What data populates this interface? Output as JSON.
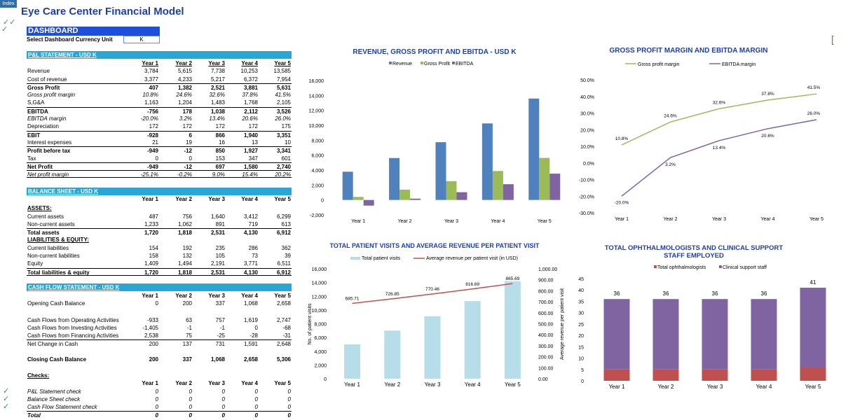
{
  "index_tab": "Index",
  "title": "Eye Care Center Financial Model",
  "dashboard_label": "DASHBOARD",
  "currency_label": "Select Dashboard Currency Unit",
  "currency_value": "K",
  "years": [
    "Year 1",
    "Year 2",
    "Year 3",
    "Year 4",
    "Year 5"
  ],
  "pl": {
    "header": "P&L STATEMENT - USD K",
    "rows": [
      {
        "label": "Revenue",
        "values": [
          "3,784",
          "5,615",
          "7,738",
          "10,253",
          "13,585"
        ],
        "style": ""
      },
      {
        "label": "Cost of revenue",
        "values": [
          "3,377",
          "4,233",
          "5,217",
          "6,372",
          "7,954"
        ],
        "style": ""
      },
      {
        "label": "Gross Profit",
        "values": [
          "407",
          "1,382",
          "2,521",
          "3,881",
          "5,631"
        ],
        "style": "b topline"
      },
      {
        "label": "Gross profit margin",
        "values": [
          "10.8%",
          "24.6%",
          "32.6%",
          "37.8%",
          "41.5%"
        ],
        "style": "i"
      },
      {
        "label": "S,G&A",
        "values": [
          "1,163",
          "1,204",
          "1,483",
          "1,768",
          "2,105"
        ],
        "style": ""
      },
      {
        "label": "EBITDA",
        "values": [
          "-756",
          "178",
          "1,038",
          "2,112",
          "3,526"
        ],
        "style": "b topline"
      },
      {
        "label": "EBITDA margin",
        "values": [
          "-20.0%",
          "3.2%",
          "13.4%",
          "20.6%",
          "26.0%"
        ],
        "style": "i"
      },
      {
        "label": "Depreciation",
        "values": [
          "172",
          "172",
          "172",
          "172",
          "175"
        ],
        "style": ""
      },
      {
        "label": "EBIT",
        "values": [
          "-928",
          "6",
          "866",
          "1,940",
          "3,351"
        ],
        "style": "b topline"
      },
      {
        "label": "Interest expenses",
        "values": [
          "21",
          "19",
          "16",
          "13",
          "10"
        ],
        "style": ""
      },
      {
        "label": "Profit before tax",
        "values": [
          "-949",
          "-12",
          "850",
          "1,927",
          "3,341"
        ],
        "style": "b topline"
      },
      {
        "label": "Tax",
        "values": [
          "0",
          "0",
          "153",
          "347",
          "601"
        ],
        "style": ""
      },
      {
        "label": "Net Profit",
        "values": [
          "-949",
          "-12",
          "697",
          "1,580",
          "2,740"
        ],
        "style": "b topline"
      },
      {
        "label": "Net profit margin",
        "values": [
          "-25.1%",
          "-0.2%",
          "9.0%",
          "15.4%",
          "20.2%"
        ],
        "style": "i topline bottomline"
      }
    ]
  },
  "bs": {
    "header": "BALANCE SHEET - USD K",
    "rows": [
      {
        "label": "ASSETS:",
        "values": [
          "",
          "",
          "",
          "",
          ""
        ],
        "style": "b ul"
      },
      {
        "label": "Current assets",
        "values": [
          "487",
          "756",
          "1,640",
          "3,412",
          "6,299"
        ],
        "style": ""
      },
      {
        "label": "Non-current assets",
        "values": [
          "1,233",
          "1,062",
          "891",
          "719",
          "613"
        ],
        "style": ""
      },
      {
        "label": "Total assets",
        "values": [
          "1,720",
          "1,818",
          "2,531",
          "4,130",
          "6,912"
        ],
        "style": "b topline"
      },
      {
        "label": "LIABILITIES & EQUITY:",
        "values": [
          "",
          "",
          "",
          "",
          ""
        ],
        "style": "b ul"
      },
      {
        "label": "Current liabilities",
        "values": [
          "154",
          "192",
          "235",
          "286",
          "362"
        ],
        "style": ""
      },
      {
        "label": "Non-current liabilities",
        "values": [
          "158",
          "132",
          "105",
          "73",
          "39"
        ],
        "style": ""
      },
      {
        "label": "Equity",
        "values": [
          "1,409",
          "1,494",
          "2,191",
          "3,771",
          "6,511"
        ],
        "style": ""
      },
      {
        "label": "Total liabilities & equity",
        "values": [
          "1,720",
          "1,818",
          "2,531",
          "4,130",
          "6,912"
        ],
        "style": "b topline bottomline"
      }
    ]
  },
  "cf": {
    "header": "CASH FLOW STATEMENT -  USD K",
    "opening": {
      "label": "Opening Cash Balance",
      "values": [
        "0",
        "200",
        "337",
        "1,068",
        "2,658"
      ]
    },
    "rows": [
      {
        "label": "Cash Flows from Operating Activities",
        "values": [
          "-933",
          "63",
          "757",
          "1,619",
          "2,747"
        ],
        "style": ""
      },
      {
        "label": "Cash Flows from Investing Activities",
        "values": [
          "-1,405",
          "-1",
          "-1",
          "0",
          "-68"
        ],
        "style": ""
      },
      {
        "label": "Cash Flows from Financing Activities",
        "values": [
          "2,538",
          "75",
          "-25",
          "-28",
          "-31"
        ],
        "style": ""
      },
      {
        "label": "Net Change in Cash",
        "values": [
          "200",
          "137",
          "731",
          "1,591",
          "2,648"
        ],
        "style": "topline"
      }
    ],
    "closing": {
      "label": "Closing Cash Balance",
      "values": [
        "200",
        "337",
        "1,068",
        "2,658",
        "5,306"
      ]
    }
  },
  "checks": {
    "header": "Checks:",
    "rows": [
      {
        "label": "P&L Statement check",
        "values": [
          "0",
          "0",
          "0",
          "0",
          "0"
        ],
        "style": "i"
      },
      {
        "label": "Balance Sheet check",
        "values": [
          "0",
          "0",
          "0",
          "0",
          "0"
        ],
        "style": "i"
      },
      {
        "label": "Cash Flow Statement check",
        "values": [
          "0",
          "0",
          "0",
          "0",
          "0"
        ],
        "style": "i"
      },
      {
        "label": "Total",
        "values": [
          "0",
          "0",
          "0",
          "0",
          "0"
        ],
        "style": "b i topline"
      }
    ]
  },
  "chart_data": [
    {
      "type": "bar",
      "title": "REVENUE, GROSS PROFIT AND EBITDA - USD K",
      "categories": [
        "Year 1",
        "Year 2",
        "Year 3",
        "Year 4",
        "Year 5"
      ],
      "series": [
        {
          "name": "Revenue",
          "values": [
            3784,
            5615,
            7738,
            10253,
            13585
          ],
          "color": "#4f81bd"
        },
        {
          "name": "Gross Profit",
          "values": [
            407,
            1382,
            2521,
            3881,
            5631
          ],
          "color": "#9bbb59"
        },
        {
          "name": "EBITDA",
          "values": [
            -756,
            178,
            1038,
            2112,
            3526
          ],
          "color": "#8064a2"
        }
      ],
      "ylim": [
        -2000,
        16000
      ],
      "yticks": [
        "-2,000",
        "0",
        "2,000",
        "4,000",
        "6,000",
        "8,000",
        "10,000",
        "12,000",
        "14,000",
        "16,000"
      ],
      "legend": "top"
    },
    {
      "type": "line",
      "title": "GROSS PROFIT MARGIN AND EBITDA MARGIN",
      "categories": [
        "Year 1",
        "Year 2",
        "Year 3",
        "Year 4",
        "Year 5"
      ],
      "series": [
        {
          "name": "Gross profit margin",
          "values": [
            10.8,
            24.6,
            32.6,
            37.8,
            41.5
          ],
          "labels": [
            "10.8%",
            "24.6%",
            "32.6%",
            "37.8%",
            "41.5%"
          ],
          "color": "#9bbb59"
        },
        {
          "name": "EBITDA margin",
          "values": [
            -20.0,
            3.2,
            13.4,
            20.6,
            26.0
          ],
          "labels": [
            "-20.0%",
            "3.2%",
            "13.4%",
            "20.6%",
            "26.0%"
          ],
          "color": "#8064a2"
        }
      ],
      "ylim": [
        -30,
        50
      ],
      "yticks": [
        "-30.0%",
        "-20.0%",
        "-10.0%",
        "0.0%",
        "10.0%",
        "20.0%",
        "30.0%",
        "40.0%",
        "50.0%"
      ],
      "legend": "top"
    },
    {
      "type": "bar",
      "title": "TOTAL PATIENT VISITS AND AVERAGE REVENUE PER PATIENT VISIT",
      "categories": [
        "Year 1",
        "Year 2",
        "Year 3",
        "Year 4",
        "Year 5"
      ],
      "series": [
        {
          "name": "Total patient visits",
          "values": [
            5000,
            7000,
            9100,
            11300,
            14200
          ],
          "color": "#b7dde8"
        },
        {
          "name": "Average revenue per patient visit (in USD)",
          "values": [
            685.71,
            726.85,
            770.46,
            816.69,
            865.69
          ],
          "labels": [
            "685.71",
            "726.85",
            "770.46",
            "816.69",
            "865.69"
          ],
          "color": "#c0504d"
        }
      ],
      "ylim": [
        0,
        16000
      ],
      "yticks": [
        "0",
        "2,000",
        "4,000",
        "6,000",
        "8,000",
        "10,000",
        "12,000",
        "14,000",
        "16,000"
      ],
      "y2lim": [
        0,
        1000
      ],
      "y2ticks": [
        "0.00",
        "100.00",
        "200.00",
        "300.00",
        "400.00",
        "500.00",
        "600.00",
        "700.00",
        "800.00",
        "900.00",
        "1,000.00"
      ],
      "ylabel": "No. of patient visits",
      "y2label": "Average revenue per patient visit",
      "legend": "top"
    },
    {
      "type": "bar",
      "title": "TOTAL OPHTHALMOLOGISTS AND CLINICAL SUPPORT STAFF EMPLOYED",
      "categories": [
        "Year 1",
        "Year 2",
        "Year 3",
        "Year 4",
        "Year 5"
      ],
      "series": [
        {
          "name": "Total ophthalmologists",
          "values": [
            5,
            5,
            5,
            5,
            6
          ],
          "color": "#c0504d"
        },
        {
          "name": "Clinical support staff",
          "values": [
            31,
            31,
            31,
            31,
            35
          ],
          "color": "#8064a2"
        }
      ],
      "totals": [
        "36",
        "36",
        "36",
        "36",
        "41"
      ],
      "ylim": [
        0,
        45
      ],
      "yticks": [
        "0",
        "5",
        "10",
        "15",
        "20",
        "25",
        "30",
        "35",
        "40",
        "45"
      ],
      "legend": "top",
      "stacked": true
    }
  ]
}
